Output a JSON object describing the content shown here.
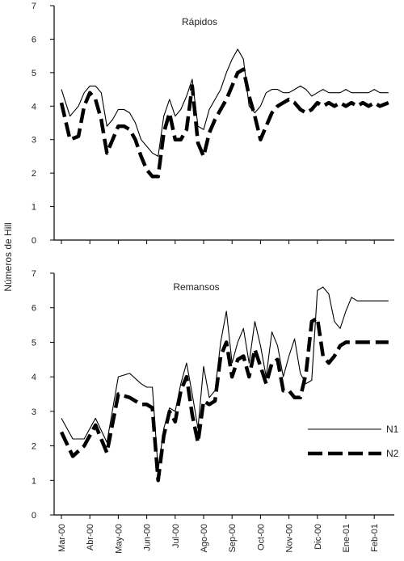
{
  "chart_data": {
    "type": "line",
    "ylabel": "Números de Hill",
    "xlabel": "",
    "categories": [
      "Mar-00",
      "Abr-00",
      "May-00",
      "Jun-00",
      "Jul-00",
      "Ago-00",
      "Sep-00",
      "Oct-00",
      "Nov-00",
      "Dic-00",
      "Ene-01",
      "Feb-01"
    ],
    "legend": {
      "placement": "right, lower panel",
      "entries": [
        "N1",
        "N2"
      ]
    },
    "colors": {
      "line": "#000000",
      "axis": "#000000"
    },
    "panels": [
      {
        "title": "Rápidos",
        "ylim": [
          0,
          7
        ],
        "yticks": [
          0,
          1,
          2,
          3,
          4,
          5,
          6,
          7
        ],
        "series": [
          {
            "name": "N1",
            "style": "solid",
            "x": [
              0,
              0.3,
              0.6,
              0.8,
              1.0,
              1.2,
              1.4,
              1.6,
              1.8,
              2.0,
              2.2,
              2.4,
              2.6,
              2.8,
              3.0,
              3.2,
              3.4,
              3.6,
              3.8,
              4.0,
              4.2,
              4.4,
              4.6,
              4.8,
              5.0,
              5.2,
              5.4,
              5.6,
              5.8,
              6.0,
              6.2,
              6.4,
              6.6,
              6.8,
              7.0,
              7.2,
              7.4,
              7.6,
              7.8,
              8.0,
              8.2,
              8.4,
              8.6,
              8.8,
              9.0,
              9.2,
              9.4,
              9.6,
              9.8,
              10.0,
              10.2,
              10.4,
              10.6,
              10.8,
              11.0,
              11.2,
              11.5
            ],
            "y": [
              4.5,
              3.7,
              4.0,
              4.4,
              4.6,
              4.6,
              4.4,
              3.4,
              3.6,
              3.9,
              3.9,
              3.8,
              3.5,
              3.0,
              2.8,
              2.6,
              2.5,
              3.7,
              4.2,
              3.7,
              3.9,
              4.3,
              4.8,
              3.4,
              3.3,
              3.9,
              4.2,
              4.5,
              5.0,
              5.4,
              5.7,
              5.4,
              4.0,
              3.8,
              4.0,
              4.4,
              4.5,
              4.5,
              4.4,
              4.4,
              4.5,
              4.6,
              4.5,
              4.3,
              4.4,
              4.5,
              4.4,
              4.4,
              4.4,
              4.5,
              4.4,
              4.4,
              4.4,
              4.4,
              4.5,
              4.4,
              4.4
            ]
          },
          {
            "name": "N2",
            "style": "dashed",
            "x": [
              0,
              0.3,
              0.6,
              0.8,
              1.0,
              1.2,
              1.4,
              1.6,
              1.8,
              2.0,
              2.2,
              2.4,
              2.6,
              2.8,
              3.0,
              3.2,
              3.4,
              3.6,
              3.8,
              4.0,
              4.2,
              4.4,
              4.6,
              4.8,
              5.0,
              5.2,
              5.4,
              5.6,
              5.8,
              6.0,
              6.2,
              6.4,
              6.6,
              6.8,
              7.0,
              7.2,
              7.4,
              7.6,
              7.8,
              8.0,
              8.2,
              8.4,
              8.6,
              8.8,
              9.0,
              9.2,
              9.4,
              9.6,
              9.8,
              10.0,
              10.2,
              10.4,
              10.6,
              10.8,
              11.0,
              11.2,
              11.5
            ],
            "y": [
              4.1,
              3.0,
              3.1,
              4.0,
              4.4,
              4.2,
              3.6,
              2.6,
              3.0,
              3.4,
              3.4,
              3.3,
              3.0,
              2.5,
              2.1,
              1.9,
              1.9,
              3.2,
              3.8,
              3.0,
              3.0,
              3.3,
              4.6,
              2.9,
              2.5,
              3.2,
              3.6,
              3.9,
              4.2,
              4.6,
              5.0,
              5.1,
              4.3,
              3.7,
              3.0,
              3.4,
              3.8,
              4.0,
              4.1,
              4.2,
              4.1,
              3.9,
              3.8,
              3.9,
              4.1,
              4.0,
              4.1,
              4.0,
              4.1,
              4.0,
              4.1,
              4.0,
              4.1,
              4.0,
              4.1,
              4.0,
              4.1
            ]
          }
        ]
      },
      {
        "title": "Remansos",
        "ylim": [
          0,
          7
        ],
        "yticks": [
          0,
          1,
          2,
          3,
          4,
          5,
          6,
          7
        ],
        "series": [
          {
            "name": "N1",
            "style": "solid",
            "x": [
              0,
              0.4,
              0.8,
              1.0,
              1.2,
              1.6,
              2.0,
              2.4,
              2.8,
              3.0,
              3.2,
              3.4,
              3.6,
              3.8,
              4.0,
              4.2,
              4.4,
              4.6,
              4.8,
              5.0,
              5.2,
              5.4,
              5.6,
              5.8,
              6.0,
              6.2,
              6.4,
              6.6,
              6.8,
              7.0,
              7.2,
              7.4,
              7.6,
              7.8,
              8.0,
              8.2,
              8.4,
              8.6,
              8.8,
              9.0,
              9.2,
              9.4,
              9.6,
              9.8,
              10.0,
              10.2,
              10.4,
              10.6,
              10.8,
              11.0,
              11.2,
              11.5
            ],
            "y": [
              2.8,
              2.2,
              2.2,
              2.5,
              2.8,
              2.1,
              4.0,
              4.1,
              3.8,
              3.7,
              3.7,
              1.3,
              2.5,
              3.1,
              3.0,
              3.8,
              4.4,
              3.5,
              2.5,
              4.3,
              3.4,
              3.6,
              5.0,
              5.9,
              4.4,
              5.0,
              5.4,
              4.4,
              5.6,
              4.9,
              4.0,
              5.3,
              4.9,
              4.0,
              4.6,
              5.1,
              4.1,
              3.8,
              3.9,
              6.5,
              6.6,
              6.4,
              5.6,
              5.4,
              5.9,
              6.3,
              6.2,
              6.2,
              6.2,
              6.2,
              6.2,
              6.2
            ]
          },
          {
            "name": "N2",
            "style": "dashed",
            "x": [
              0,
              0.4,
              0.8,
              1.0,
              1.2,
              1.6,
              2.0,
              2.4,
              2.8,
              3.0,
              3.2,
              3.4,
              3.6,
              3.8,
              4.0,
              4.2,
              4.4,
              4.6,
              4.8,
              5.0,
              5.2,
              5.4,
              5.6,
              5.8,
              6.0,
              6.2,
              6.4,
              6.6,
              6.8,
              7.0,
              7.2,
              7.4,
              7.6,
              7.8,
              8.0,
              8.2,
              8.4,
              8.6,
              8.8,
              9.0,
              9.2,
              9.4,
              9.6,
              9.8,
              10.0,
              10.2,
              10.4,
              10.6,
              10.8,
              11.0,
              11.2,
              11.5
            ],
            "y": [
              2.4,
              1.7,
              2.0,
              2.3,
              2.6,
              1.8,
              3.5,
              3.4,
              3.2,
              3.2,
              3.1,
              1.0,
              2.3,
              3.0,
              2.7,
              3.6,
              4.0,
              2.9,
              2.1,
              3.3,
              3.2,
              3.3,
              4.6,
              5.0,
              4.0,
              4.5,
              4.6,
              4.0,
              4.8,
              4.3,
              3.8,
              4.4,
              4.5,
              3.6,
              3.6,
              3.4,
              3.4,
              4.1,
              5.6,
              5.7,
              4.6,
              4.4,
              4.6,
              4.9,
              5.0,
              5.0,
              5.0,
              5.0,
              5.0,
              5.0,
              5.0,
              5.0
            ]
          }
        ]
      }
    ]
  }
}
